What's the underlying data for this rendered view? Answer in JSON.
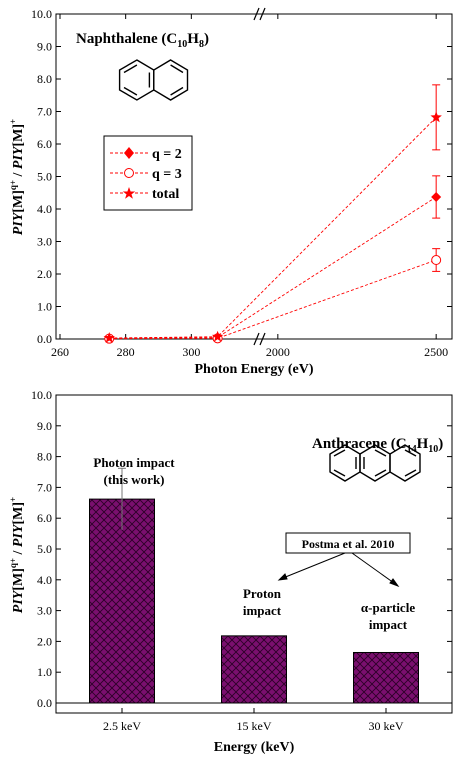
{
  "chart_data": [
    {
      "type": "line",
      "panel": "top",
      "title": "Naphthalene (C",
      "title_sub1": "10",
      "title_mid": "H",
      "title_sub2": "8",
      "title_end": ")",
      "xlabel": "Photon Energy (eV)",
      "ylabel_parts": [
        "PIY",
        "[M]",
        "q+",
        " / ",
        "PIY",
        "[M]",
        "+"
      ],
      "ylim": [
        0,
        10
      ],
      "yticks": [
        "0.0",
        "1.0",
        "2.0",
        "3.0",
        "4.0",
        "5.0",
        "6.0",
        "7.0",
        "8.0",
        "9.0",
        "10.0"
      ],
      "xaxis_broken": true,
      "xaxis_segments": [
        {
          "range": [
            260,
            320
          ],
          "ticks": [
            260,
            280,
            300
          ]
        },
        {
          "range": [
            1950,
            2550
          ],
          "ticks": [
            2000,
            2500
          ]
        }
      ],
      "xtick_labels": [
        "260",
        "280",
        "300",
        "2000",
        "2500"
      ],
      "legend_placement": "left-middle",
      "series": [
        {
          "name": "q = 2",
          "marker": "diamond",
          "color": "#ff0000",
          "x": [
            275,
            308,
            2500
          ],
          "y": [
            0.02,
            0.05,
            4.37
          ],
          "yerr": [
            0,
            0,
            0.65
          ]
        },
        {
          "name": "q = 3",
          "marker": "circle-open",
          "color": "#ff0000",
          "x": [
            275,
            308,
            2500
          ],
          "y": [
            0.01,
            0.02,
            2.43
          ],
          "yerr": [
            0,
            0,
            0.35
          ]
        },
        {
          "name": "total",
          "marker": "star",
          "color": "#ff0000",
          "x": [
            275,
            308,
            2500
          ],
          "y": [
            0.03,
            0.07,
            6.82
          ],
          "yerr": [
            0,
            0,
            1.0
          ]
        }
      ]
    },
    {
      "type": "bar",
      "panel": "bottom",
      "title": "Anthracene (C",
      "title_sub1": "14",
      "title_mid": "H",
      "title_sub2": "10",
      "title_end": ")",
      "xlabel": "Energy (keV)",
      "ylabel_parts": [
        "PIY",
        "[M]",
        "q+",
        " / ",
        "PIY",
        "[M]",
        "+"
      ],
      "ylim": [
        0,
        10
      ],
      "yticks": [
        "0.0",
        "1.0",
        "2.0",
        "3.0",
        "4.0",
        "5.0",
        "6.0",
        "7.0",
        "8.0",
        "9.0",
        "10.0"
      ],
      "categories": [
        "2.5 keV",
        "15 keV",
        "30 keV"
      ],
      "values": [
        6.62,
        2.18,
        1.64
      ],
      "errors": [
        1.0,
        0,
        0
      ],
      "bar_color": "#7a0f6e",
      "annotations": {
        "photon_line1": "Photon impact",
        "photon_line2": "(this work)",
        "postma": "Postma et al. 2010",
        "proton_line1": "Proton",
        "proton_line2": "impact",
        "alpha_line1": "α-particle",
        "alpha_line2": "impact"
      }
    }
  ]
}
